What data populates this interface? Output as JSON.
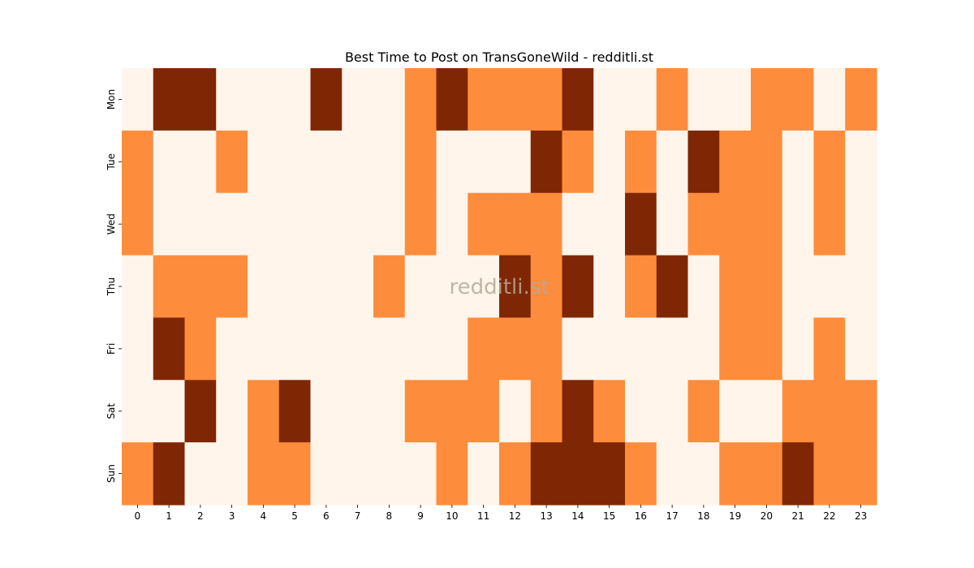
{
  "chart_data": {
    "type": "heatmap",
    "title": "Best Time to Post on TransGoneWild - redditli.st",
    "watermark": "redditli.st",
    "xlabel": "",
    "ylabel": "",
    "x_categories": [
      "0",
      "1",
      "2",
      "3",
      "4",
      "5",
      "6",
      "7",
      "8",
      "9",
      "10",
      "11",
      "12",
      "13",
      "14",
      "15",
      "16",
      "17",
      "18",
      "19",
      "20",
      "21",
      "22",
      "23"
    ],
    "y_categories": [
      "Mon",
      "Tue",
      "Wed",
      "Thu",
      "Fri",
      "Sat",
      "Sun"
    ],
    "levels": [
      0,
      1,
      2
    ],
    "colors": {
      "0": "#fff5eb",
      "1": "#fd8d3c",
      "2": "#7f2704"
    },
    "colorbar": false,
    "values": [
      [
        0,
        2,
        2,
        0,
        0,
        0,
        2,
        0,
        0,
        1,
        2,
        1,
        1,
        1,
        2,
        0,
        0,
        1,
        0,
        0,
        1,
        1,
        0,
        1
      ],
      [
        1,
        0,
        0,
        1,
        0,
        0,
        0,
        0,
        0,
        1,
        0,
        0,
        0,
        2,
        1,
        0,
        1,
        0,
        2,
        1,
        1,
        0,
        1,
        0
      ],
      [
        1,
        0,
        0,
        0,
        0,
        0,
        0,
        0,
        0,
        1,
        0,
        1,
        1,
        1,
        0,
        0,
        2,
        0,
        1,
        1,
        1,
        0,
        1,
        0
      ],
      [
        0,
        1,
        1,
        1,
        0,
        0,
        0,
        0,
        1,
        0,
        0,
        0,
        2,
        1,
        2,
        0,
        1,
        2,
        0,
        1,
        1,
        0,
        0,
        0
      ],
      [
        0,
        2,
        1,
        0,
        0,
        0,
        0,
        0,
        0,
        0,
        0,
        1,
        1,
        1,
        0,
        0,
        0,
        0,
        0,
        1,
        1,
        0,
        1,
        0
      ],
      [
        0,
        0,
        2,
        0,
        1,
        2,
        0,
        0,
        0,
        1,
        1,
        1,
        0,
        1,
        2,
        1,
        0,
        0,
        1,
        0,
        0,
        1,
        1,
        1
      ],
      [
        1,
        2,
        0,
        0,
        1,
        1,
        0,
        0,
        0,
        0,
        1,
        0,
        1,
        2,
        2,
        2,
        1,
        0,
        0,
        1,
        1,
        2,
        1,
        1
      ]
    ]
  }
}
